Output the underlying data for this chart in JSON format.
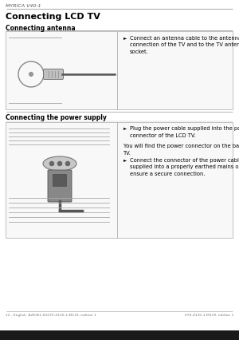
{
  "bg_color": "#ffffff",
  "header_text": "MYRICA V40-1",
  "header_line_color": "#999999",
  "title": "Connecting LCD TV",
  "section1_label": "Connecting antenna",
  "section1_bullet": "Connect an antenna cable to the antenna\nconnection of the TV and to the TV antenna\nsocket.",
  "section2_label": "Connecting the power supply",
  "section2_bullet1": "Plug the power cable supplied into the power\nconnector of the LCD TV.",
  "section2_text": "You will find the power connector on the back of the\nTV.",
  "section2_bullet2": "Connect the connector of the power cable\nsupplied into a properly earthed mains outlet and\nensure a secure connection.",
  "footer_left": "12 - English  A26361-K1070-Z120-1-M119, edition 1",
  "footer_right": "070-Z120-1-M119, edition 1",
  "box_border": "#aaaaaa",
  "text_color": "#000000"
}
